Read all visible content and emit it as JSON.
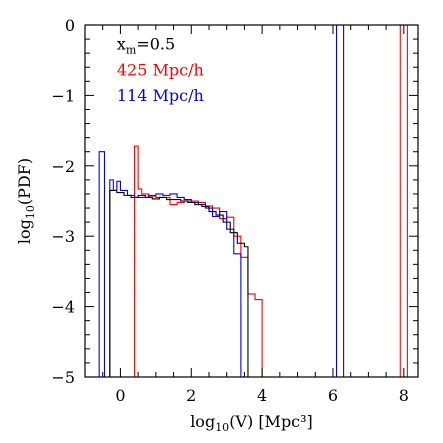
{
  "chart_data": {
    "type": "line",
    "title": "",
    "xlabel_main": "log",
    "xlabel_sub": "10",
    "xlabel_rest": "(V) [Mpc³]",
    "ylabel_main": "log",
    "ylabel_sub": "10",
    "ylabel_rest": "(PDF)",
    "xlim": [
      -1.0,
      8.4
    ],
    "ylim": [
      -5,
      0
    ],
    "xticks": [
      0,
      2,
      4,
      6,
      8
    ],
    "yticks": [
      0,
      -1,
      -2,
      -3,
      -4,
      -5
    ],
    "xtick_labels": [
      "0",
      "2",
      "4",
      "6",
      "8"
    ],
    "ytick_labels": [
      "0",
      "−1",
      "−2",
      "−3",
      "−4",
      "−5"
    ],
    "legend": {
      "position": "top-left",
      "annotation_main": "x",
      "annotation_sub": "m",
      "annotation_rest": "=0.5",
      "entries": [
        {
          "label": "425 Mpc/h",
          "color": "#ff0000"
        },
        {
          "label": "114 Mpc/h",
          "color": "#0000ff"
        }
      ]
    },
    "series": [
      {
        "name": "425 Mpc/h",
        "color": "#ff0000",
        "steps": [
          [
            0.4,
            -1.72
          ],
          [
            0.5,
            -2.33
          ],
          [
            0.6,
            -2.4
          ],
          [
            0.8,
            -2.43
          ],
          [
            1.0,
            -2.45
          ],
          [
            1.2,
            -2.45
          ],
          [
            1.4,
            -2.55
          ],
          [
            1.6,
            -2.52
          ],
          [
            1.8,
            -2.5
          ],
          [
            2.0,
            -2.5
          ],
          [
            2.2,
            -2.52
          ],
          [
            2.4,
            -2.57
          ],
          [
            2.6,
            -2.6
          ],
          [
            2.8,
            -2.75
          ],
          [
            3.0,
            -2.73
          ],
          [
            3.2,
            -3.0
          ],
          [
            3.4,
            -3.3
          ],
          [
            3.6,
            -3.82
          ],
          [
            3.8,
            -3.9
          ],
          [
            4.0,
            -5.0
          ]
        ],
        "spikes": [
          [
            7.9,
            8.1
          ]
        ]
      },
      {
        "name": "114 Mpc/h",
        "color": "#0000ff",
        "steps": [
          [
            -0.6,
            -1.8
          ],
          [
            -0.45,
            -5.0
          ],
          [
            -0.3,
            -2.2
          ],
          [
            -0.2,
            -2.35
          ],
          [
            -0.1,
            -2.22
          ],
          [
            0.0,
            -2.35
          ],
          [
            0.2,
            -2.42
          ],
          [
            0.4,
            -2.45
          ],
          [
            0.6,
            -2.45
          ],
          [
            0.8,
            -2.42
          ],
          [
            1.0,
            -2.4
          ],
          [
            1.2,
            -2.42
          ],
          [
            1.4,
            -2.4
          ],
          [
            1.6,
            -2.45
          ],
          [
            1.8,
            -2.48
          ],
          [
            2.0,
            -2.52
          ],
          [
            2.2,
            -2.55
          ],
          [
            2.4,
            -2.6
          ],
          [
            2.6,
            -2.72
          ],
          [
            2.8,
            -2.65
          ],
          [
            3.0,
            -2.9
          ],
          [
            3.2,
            -3.25
          ],
          [
            3.4,
            -5.0
          ]
        ],
        "spikes": [
          [
            6.1,
            6.3
          ]
        ]
      },
      {
        "name": "",
        "color": "#000000",
        "steps": [
          [
            -0.3,
            -2.35
          ],
          [
            -0.1,
            -2.38
          ],
          [
            0.1,
            -2.42
          ],
          [
            0.3,
            -2.45
          ],
          [
            0.5,
            -2.42
          ],
          [
            0.7,
            -2.45
          ],
          [
            0.9,
            -2.47
          ],
          [
            1.1,
            -2.45
          ],
          [
            1.3,
            -2.48
          ],
          [
            1.5,
            -2.48
          ],
          [
            1.7,
            -2.5
          ],
          [
            1.9,
            -2.52
          ],
          [
            2.1,
            -2.55
          ],
          [
            2.3,
            -2.58
          ],
          [
            2.5,
            -2.65
          ],
          [
            2.7,
            -2.7
          ],
          [
            2.9,
            -2.8
          ],
          [
            3.1,
            -2.95
          ],
          [
            3.3,
            -3.1
          ],
          [
            3.5,
            -3.15
          ],
          [
            3.6,
            -5.0
          ]
        ],
        "spikes": []
      }
    ]
  }
}
